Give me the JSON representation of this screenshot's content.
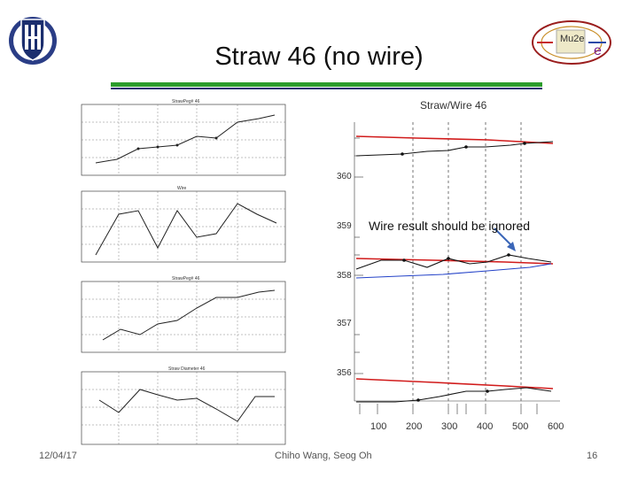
{
  "slide": {
    "title": "Straw 46 (no wire)",
    "note": "Wire result should be ignored",
    "footer": {
      "date": "12/04/17",
      "authors": "Chiho Wang, Seog Oh",
      "page": "16"
    },
    "colors": {
      "accent_green": "#2c9c2c",
      "accent_blue": "#1b2e6e",
      "red_line": "#d11b1b",
      "blue_series": "#2342c8"
    }
  },
  "logos": {
    "left": "university-shield-logo",
    "right": "mu2e-logo",
    "right_text": "Mu2e"
  },
  "right_chart": {
    "title": "Straw/Wire 46",
    "y_labels": [
      "360",
      "359",
      "358",
      "357",
      "356"
    ],
    "x_labels": [
      "100",
      "200",
      "300",
      "400",
      "500",
      "600"
    ]
  },
  "left_panels": [
    {
      "title": "StrawPeg# 46"
    },
    {
      "title": "Wire"
    },
    {
      "title": "StrawPeg# 46"
    },
    {
      "title": "Straw Diameter 46"
    }
  ]
}
